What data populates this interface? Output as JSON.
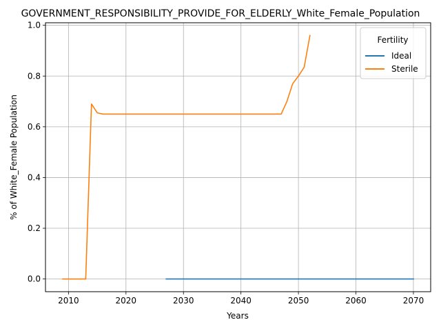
{
  "chart_data": {
    "type": "line",
    "title": "GOVERNMENT_RESPONSIBILITY_PROVIDE_FOR_ELDERLY_White_Female_Population",
    "xlabel": "Years",
    "ylabel": "% of White_Female Population",
    "xlim": [
      2006,
      2073
    ],
    "ylim": [
      -0.05,
      1.01
    ],
    "xticks": [
      2010,
      2020,
      2030,
      2040,
      2050,
      2060,
      2070
    ],
    "yticks": [
      0.0,
      0.2,
      0.4,
      0.6,
      0.8,
      1.0
    ],
    "xtick_labels": [
      "2010",
      "2020",
      "2030",
      "2040",
      "2050",
      "2060",
      "2070"
    ],
    "ytick_labels": [
      "0.0",
      "0.2",
      "0.4",
      "0.6",
      "0.8",
      "1.0"
    ],
    "grid": true,
    "legend": {
      "title": "Fertility",
      "placement": "top-right"
    },
    "series": [
      {
        "name": "Ideal",
        "color": "#1f77b4",
        "x": [
          2027,
          2030,
          2035,
          2040,
          2045,
          2050,
          2055,
          2060,
          2065,
          2070
        ],
        "y": [
          0.0,
          0.0,
          0.0,
          0.0,
          0.0,
          0.0,
          0.0,
          0.0,
          0.0,
          0.0
        ]
      },
      {
        "name": "Sterile",
        "color": "#ff7f0e",
        "x": [
          2009,
          2010,
          2011,
          2012,
          2013,
          2014,
          2015,
          2016,
          2017,
          2020,
          2025,
          2030,
          2035,
          2040,
          2045,
          2047,
          2048,
          2049,
          2050,
          2051,
          2052
        ],
        "y": [
          0.0,
          0.0,
          0.0,
          0.0,
          0.0,
          0.69,
          0.655,
          0.65,
          0.65,
          0.65,
          0.65,
          0.65,
          0.65,
          0.65,
          0.65,
          0.65,
          0.7,
          0.77,
          0.8,
          0.835,
          0.96
        ]
      }
    ]
  }
}
